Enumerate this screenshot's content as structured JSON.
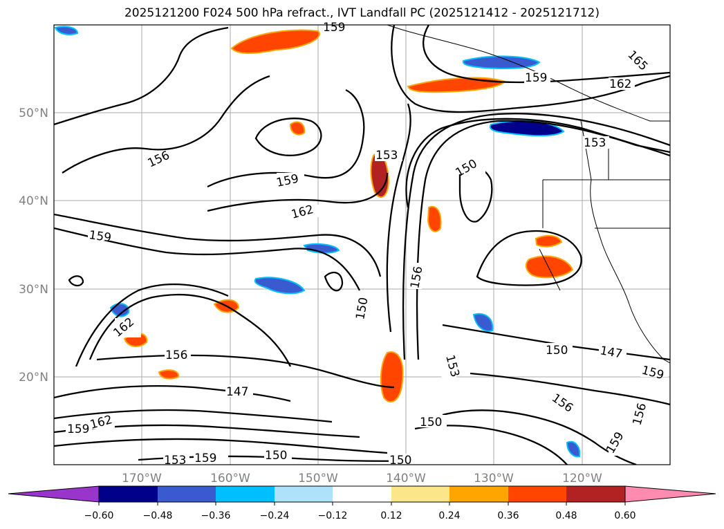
{
  "title": "2025121200 F024 500 hPa refract., IVT Landfall PC (2025121412 - 2025121712)",
  "map": {
    "lon_range": [
      -180,
      -110
    ],
    "lat_range": [
      10,
      60
    ],
    "lon_ticks": [
      "170°W",
      "160°W",
      "150°W",
      "140°W",
      "130°W",
      "120°W"
    ],
    "lat_ticks": [
      "50°N",
      "40°N",
      "30°N",
      "20°N"
    ],
    "grid": true,
    "contour_color": "#000000",
    "coastline_color": "#000000"
  },
  "contour_labels": [
    "159",
    "165",
    "162",
    "159",
    "153",
    "156",
    "159",
    "162",
    "153",
    "150",
    "159",
    "156",
    "150",
    "162",
    "156",
    "150",
    "147",
    "159",
    "153",
    "147",
    "156",
    "159",
    "162",
    "156",
    "150",
    "159",
    "153",
    "159",
    "150",
    "150"
  ],
  "colorbar": {
    "extend": "both",
    "ticks": [
      "−0.60",
      "−0.48",
      "−0.36",
      "−0.24",
      "−0.12",
      "0.12",
      "0.24",
      "0.36",
      "0.48",
      "0.60"
    ],
    "colors": [
      "#9a35cc",
      "#00008b",
      "#3a5bd0",
      "#00bfff",
      "#aee2fa",
      "#ffffff",
      "#fbe68a",
      "#ffa500",
      "#ff4500",
      "#b22222",
      "#ff8cb0"
    ]
  }
}
